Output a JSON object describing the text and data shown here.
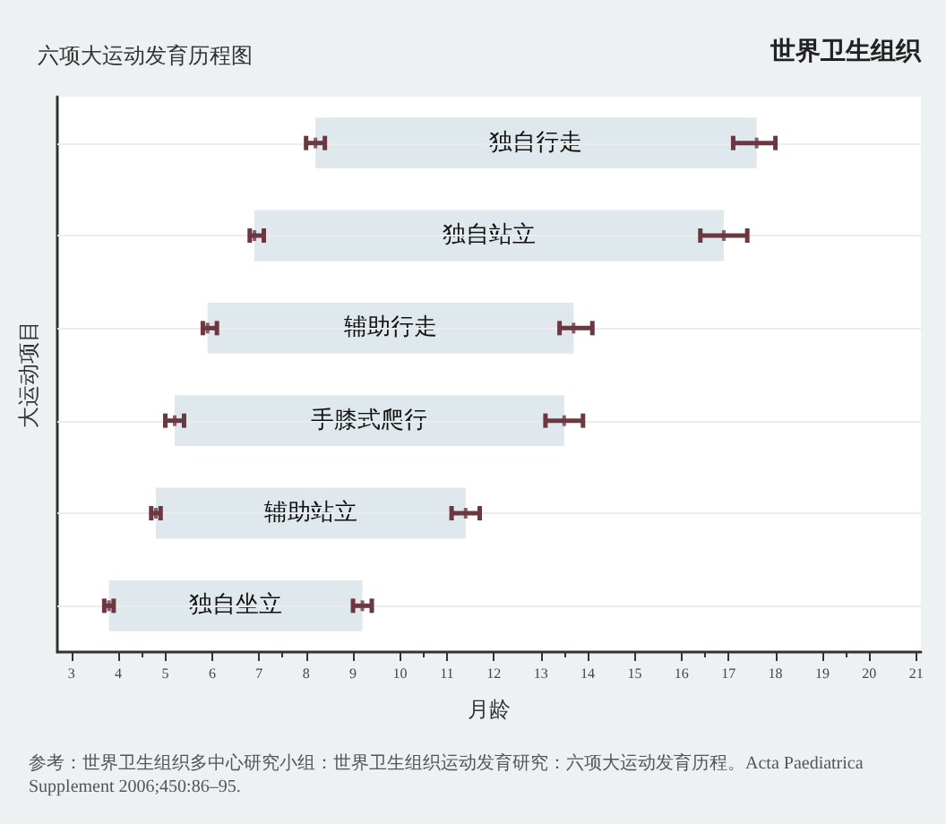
{
  "chart_data": {
    "type": "bar",
    "orientation": "horizontal",
    "title": "六项大运动发育历程图",
    "xlabel": "月龄",
    "ylabel": "大运动项目",
    "categories": [
      "独自行走",
      "独自站立",
      "辅助行走",
      "手膝式爬行",
      "辅助站立",
      "独自坐立"
    ],
    "series": [
      {
        "color": "#dfe8ec",
        "base": [
          8.2,
          6.9,
          5.9,
          5.2,
          4.8,
          3.8
        ],
        "values": [
          9.4,
          10.0,
          7.8,
          8.3,
          6.6,
          5.4
        ]
      },
      {
        "type": "scatter",
        "color": "#6b3842",
        "values": [
          8.2,
          6.9,
          5.9,
          5.2,
          4.8,
          3.8
        ],
        "errors": [
          [
            8.0,
            8.4
          ],
          [
            6.8,
            7.1
          ],
          [
            5.8,
            6.1
          ],
          [
            5.0,
            5.4
          ],
          [
            4.7,
            4.9
          ],
          [
            3.7,
            3.9
          ]
        ]
      },
      {
        "type": "scatter",
        "color": "#6b3842",
        "values": [
          17.6,
          16.9,
          13.7,
          13.5,
          11.4,
          9.2
        ],
        "errors": [
          [
            17.1,
            18.0
          ],
          [
            16.4,
            17.4
          ],
          [
            13.4,
            14.1
          ],
          [
            13.1,
            13.9
          ],
          [
            11.1,
            11.7
          ],
          [
            9.0,
            9.4
          ]
        ]
      }
    ],
    "xlim": [
      2.7,
      21.1
    ],
    "xticks": [
      3,
      4,
      5,
      6,
      7,
      8,
      9,
      10,
      11,
      12,
      13,
      14,
      15,
      16,
      17,
      18,
      19,
      20,
      21
    ],
    "grid": "y",
    "tick_labels": "x",
    "annotations": [
      "世界卫生组织",
      "参考：世界卫生组织多中心研究小组：世界卫生组织运动发育研究：六项大运动发育历程。Acta Paediatrica Supplement 2006;450:86–95."
    ]
  }
}
